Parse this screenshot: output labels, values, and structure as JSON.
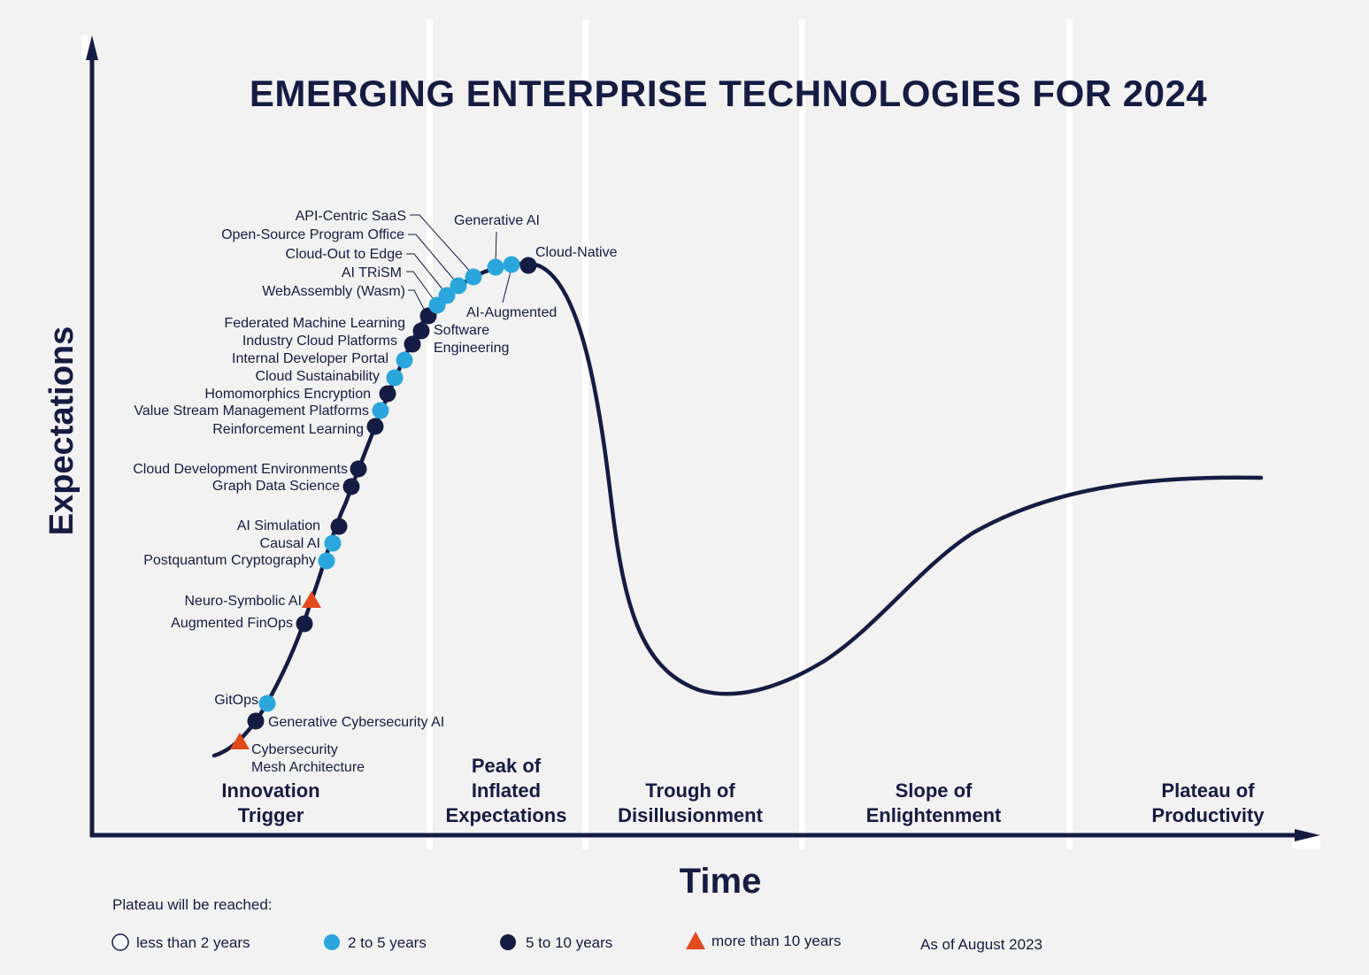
{
  "title": "EMERGING ENTERPRISE TECHNOLOGIES FOR 2024",
  "axes": {
    "x_label": "Time",
    "y_label": "Expectations"
  },
  "phases": [
    {
      "id": "innovation",
      "lines": [
        "Innovation",
        "Trigger"
      ]
    },
    {
      "id": "peak",
      "lines": [
        "Peak of",
        "Inflated",
        "Expectations"
      ]
    },
    {
      "id": "trough",
      "lines": [
        "Trough of",
        "Disillusionment"
      ]
    },
    {
      "id": "slope",
      "lines": [
        "Slope of",
        "Enlightenment"
      ]
    },
    {
      "id": "plateau",
      "lines": [
        "Plateau of",
        "Productivity"
      ]
    }
  ],
  "legend": {
    "heading": "Plateau will be reached:",
    "items": [
      {
        "id": "lt2",
        "label": "less than 2 years"
      },
      {
        "id": "2to5",
        "label": "2 to 5 years"
      },
      {
        "id": "5to10",
        "label": "5 to 10 years"
      },
      {
        "id": "gt10",
        "label": "more than 10 years"
      }
    ],
    "as_of": "As of August 2023"
  },
  "colors": {
    "navy": "#151c43",
    "blue": "#2aa6dd",
    "orange": "#e24a1c",
    "background": "#f2f2f2",
    "separator": "#ffffff"
  },
  "chart_data": {
    "type": "hype-cycle",
    "title": "EMERGING ENTERPRISE TECHNOLOGIES FOR 2024",
    "xlabel": "Time",
    "ylabel": "Expectations",
    "technologies": [
      {
        "name": "Cybersecurity Mesh Architecture",
        "lines": [
          "Cybersecurity",
          "Mesh Architecture"
        ],
        "category": "more than 10 years",
        "phase": "Innovation Trigger"
      },
      {
        "name": "Generative Cybersecurity AI",
        "category": "5 to 10 years",
        "phase": "Innovation Trigger"
      },
      {
        "name": "GitOps",
        "category": "2 to 5 years",
        "phase": "Innovation Trigger"
      },
      {
        "name": "Augmented FinOps",
        "category": "5 to 10 years",
        "phase": "Innovation Trigger"
      },
      {
        "name": "Neuro-Symbolic AI",
        "category": "more than 10 years",
        "phase": "Innovation Trigger"
      },
      {
        "name": "Postquantum Cryptography",
        "category": "2 to 5 years",
        "phase": "Innovation Trigger"
      },
      {
        "name": "Causal AI",
        "category": "2 to 5 years",
        "phase": "Innovation Trigger"
      },
      {
        "name": "AI Simulation",
        "category": "5 to 10 years",
        "phase": "Innovation Trigger"
      },
      {
        "name": "Graph Data Science",
        "category": "5 to 10 years",
        "phase": "Innovation Trigger"
      },
      {
        "name": "Cloud Development Environments",
        "category": "5 to 10 years",
        "phase": "Innovation Trigger"
      },
      {
        "name": "Reinforcement Learning",
        "category": "5 to 10 years",
        "phase": "Innovation Trigger"
      },
      {
        "name": "Value Stream Management Platforms",
        "category": "2 to 5 years",
        "phase": "Innovation Trigger"
      },
      {
        "name": "Homomorphics Encryption",
        "category": "5 to 10 years",
        "phase": "Innovation Trigger"
      },
      {
        "name": "Cloud Sustainability",
        "category": "2 to 5 years",
        "phase": "Innovation Trigger"
      },
      {
        "name": "Internal Developer Portal",
        "category": "2 to 5 years",
        "phase": "Innovation Trigger"
      },
      {
        "name": "Industry Cloud Platforms",
        "category": "5 to 10 years",
        "phase": "Innovation Trigger"
      },
      {
        "name": "Federated Machine Learning",
        "category": "5 to 10 years",
        "phase": "Innovation Trigger"
      },
      {
        "name": "AI-Augmented Software Engineering",
        "lines": [
          "AI-Augmented",
          "Software",
          "Engineering"
        ],
        "category": "5 to 10 years",
        "phase": "Innovation Trigger"
      },
      {
        "name": "WebAssembly (Wasm)",
        "category": "2 to 5 years",
        "phase": "Peak of Inflated Expectations"
      },
      {
        "name": "AI TRiSM",
        "category": "2 to 5 years",
        "phase": "Peak of Inflated Expectations"
      },
      {
        "name": "Cloud-Out to Edge",
        "category": "2 to 5 years",
        "phase": "Peak of Inflated Expectations"
      },
      {
        "name": "Open-Source Program Office",
        "category": "2 to 5 years",
        "phase": "Peak of Inflated Expectations"
      },
      {
        "name": "API-Centric SaaS",
        "category": "2 to 5 years",
        "phase": "Peak of Inflated Expectations"
      },
      {
        "name": "Generative AI",
        "category": "2 to 5 years",
        "phase": "Peak of Inflated Expectations"
      },
      {
        "name": "Cloud-Native",
        "category": "5 to 10 years",
        "phase": "Peak of Inflated Expectations"
      }
    ]
  }
}
